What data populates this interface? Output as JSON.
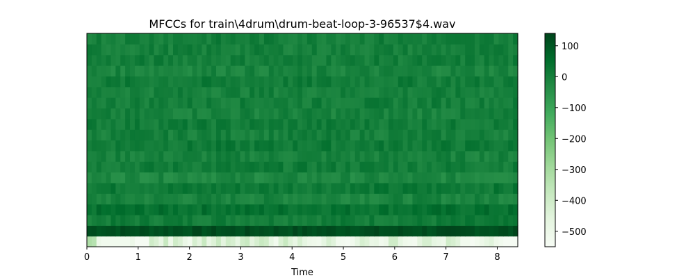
{
  "chart_data": {
    "type": "heatmap",
    "title": "MFCCs for train\\4drum\\drum-beat-loop-3-96537$4.wav",
    "xlabel": "Time",
    "ylabel": "",
    "xlim": [
      0,
      8.4
    ],
    "x_ticks": [
      "0",
      "1",
      "2",
      "3",
      "4",
      "5",
      "6",
      "7",
      "8"
    ],
    "n_coefficients": 20,
    "colormap": "Greens",
    "colorbar": {
      "range": [
        -550,
        140
      ],
      "ticks": [
        "100",
        "0",
        "−100",
        "−200",
        "−300",
        "−400",
        "−500"
      ]
    },
    "row_mean_values": [
      -520,
      120,
      10,
      40,
      -10,
      20,
      -20,
      10,
      -5,
      15,
      0,
      10,
      -5,
      5,
      0,
      10,
      -10,
      5,
      0,
      5
    ],
    "coefficient_0_profile": [
      -320,
      -340,
      -500,
      -520,
      -520,
      -520,
      -520,
      -520,
      -520,
      -500,
      -540,
      -540,
      -540,
      -400,
      -430,
      -480,
      -380,
      -500,
      -400,
      -430,
      -490,
      -520,
      -420,
      -460,
      -380,
      -480,
      -440,
      -380,
      -460,
      -400,
      -420,
      -470,
      -400,
      -380,
      -460,
      -420,
      -380,
      -400,
      -470,
      -520,
      -430,
      -380,
      -440,
      -480,
      -420,
      -470,
      -500,
      -510,
      -520,
      -470,
      -420,
      -450,
      -520,
      -530,
      -540,
      -520,
      -470,
      -420,
      -440,
      -490,
      -480,
      -520,
      -500,
      -400,
      -400,
      -470,
      -510,
      -520,
      -530,
      -460,
      -420,
      -420,
      -470,
      -490,
      -500,
      -400,
      -420,
      -450,
      -520,
      -520,
      -540,
      -520,
      -500,
      -470,
      -450,
      -500,
      -520,
      -540,
      -540,
      -540
    ]
  }
}
